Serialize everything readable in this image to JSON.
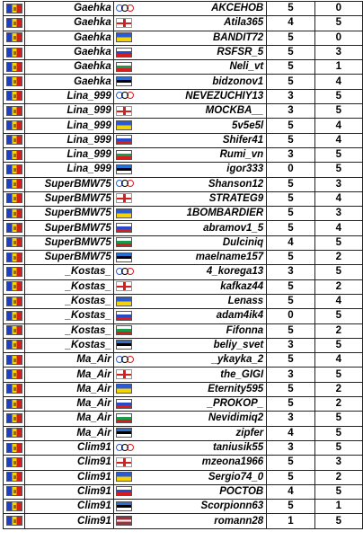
{
  "rows": [
    {
      "p1": "Gaehka",
      "flag2": "olympic",
      "p2": "AKCEHOB",
      "s1": "5",
      "s2": "0"
    },
    {
      "p1": "Gaehka",
      "flag2": "georgia",
      "p2": "Atila365",
      "s1": "4",
      "s2": "5"
    },
    {
      "p1": "Gaehka",
      "flag2": "ukraine",
      "p2": "BANDIT72",
      "s1": "5",
      "s2": "0"
    },
    {
      "p1": "Gaehka",
      "flag2": "russia",
      "p2": "RSFSR_5",
      "s1": "5",
      "s2": "3"
    },
    {
      "p1": "Gaehka",
      "flag2": "bulgaria",
      "p2": "Neli_vt",
      "s1": "5",
      "s2": "1"
    },
    {
      "p1": "Gaehka",
      "flag2": "estonia",
      "p2": "bidzonov1",
      "s1": "5",
      "s2": "4"
    },
    {
      "p1": "Lina_999",
      "flag2": "olympic",
      "p2": "NEVEZUCHIY13",
      "s1": "3",
      "s2": "5"
    },
    {
      "p1": "Lina_999",
      "flag2": "georgia",
      "p2": "MOCKBA__",
      "s1": "3",
      "s2": "5"
    },
    {
      "p1": "Lina_999",
      "flag2": "ukraine",
      "p2": "5v5e5l",
      "s1": "5",
      "s2": "4"
    },
    {
      "p1": "Lina_999",
      "flag2": "russia",
      "p2": "Shifer41",
      "s1": "5",
      "s2": "4"
    },
    {
      "p1": "Lina_999",
      "flag2": "bulgaria",
      "p2": "Rumi_vn",
      "s1": "3",
      "s2": "5"
    },
    {
      "p1": "Lina_999",
      "flag2": "estonia",
      "p2": "igor333",
      "s1": "0",
      "s2": "5"
    },
    {
      "p1": "SuperBMW75",
      "flag2": "olympic",
      "p2": "Shanson12",
      "s1": "5",
      "s2": "3"
    },
    {
      "p1": "SuperBMW75",
      "flag2": "georgia",
      "p2": "STRATEG9",
      "s1": "5",
      "s2": "4"
    },
    {
      "p1": "SuperBMW75",
      "flag2": "ukraine",
      "p2": "1BOMBARDIER",
      "s1": "5",
      "s2": "3"
    },
    {
      "p1": "SuperBMW75",
      "flag2": "russia",
      "p2": "abramov1_5",
      "s1": "5",
      "s2": "4"
    },
    {
      "p1": "SuperBMW75",
      "flag2": "bulgaria",
      "p2": "Dulciniq",
      "s1": "4",
      "s2": "5"
    },
    {
      "p1": "SuperBMW75",
      "flag2": "estonia",
      "p2": "maelname157",
      "s1": "5",
      "s2": "2"
    },
    {
      "p1": "_Kostas_",
      "flag2": "olympic",
      "p2": "4_korega13",
      "s1": "3",
      "s2": "5"
    },
    {
      "p1": "_Kostas_",
      "flag2": "georgia",
      "p2": "kafkaz44",
      "s1": "5",
      "s2": "2"
    },
    {
      "p1": "_Kostas_",
      "flag2": "ukraine",
      "p2": "Lenass",
      "s1": "5",
      "s2": "4"
    },
    {
      "p1": "_Kostas_",
      "flag2": "russia",
      "p2": "adam4ik4",
      "s1": "0",
      "s2": "5"
    },
    {
      "p1": "_Kostas_",
      "flag2": "bulgaria",
      "p2": "Fifonna",
      "s1": "5",
      "s2": "2"
    },
    {
      "p1": "_Kostas_",
      "flag2": "estonia",
      "p2": "beliy_svet",
      "s1": "3",
      "s2": "5"
    },
    {
      "p1": "Ma_Air",
      "flag2": "olympic",
      "p2": "_ykayka_2",
      "s1": "5",
      "s2": "4"
    },
    {
      "p1": "Ma_Air",
      "flag2": "georgia",
      "p2": "the_GIGI",
      "s1": "3",
      "s2": "5"
    },
    {
      "p1": "Ma_Air",
      "flag2": "ukraine",
      "p2": "Eternity595",
      "s1": "5",
      "s2": "2"
    },
    {
      "p1": "Ma_Air",
      "flag2": "russia",
      "p2": "_PROKOP_",
      "s1": "5",
      "s2": "2"
    },
    {
      "p1": "Ma_Air",
      "flag2": "bulgaria",
      "p2": "Nevidimiq2",
      "s1": "3",
      "s2": "5"
    },
    {
      "p1": "Ma_Air",
      "flag2": "estonia",
      "p2": "zipfer",
      "s1": "4",
      "s2": "5"
    },
    {
      "p1": "Clim91",
      "flag2": "olympic",
      "p2": "taniusik55",
      "s1": "3",
      "s2": "5"
    },
    {
      "p1": "Clim91",
      "flag2": "georgia",
      "p2": "mzeona1966",
      "s1": "5",
      "s2": "3"
    },
    {
      "p1": "Clim91",
      "flag2": "ukraine",
      "p2": "Sergio74_0",
      "s1": "5",
      "s2": "2"
    },
    {
      "p1": "Clim91",
      "flag2": "russia",
      "p2": "POCTOB",
      "s1": "4",
      "s2": "5"
    },
    {
      "p1": "Clim91",
      "flag2": "estonia",
      "p2": "Scorpionn63",
      "s1": "5",
      "s2": "1"
    },
    {
      "p1": "Clim91",
      "flag2": "latvia",
      "p2": "romann28",
      "s1": "1",
      "s2": "5"
    }
  ]
}
